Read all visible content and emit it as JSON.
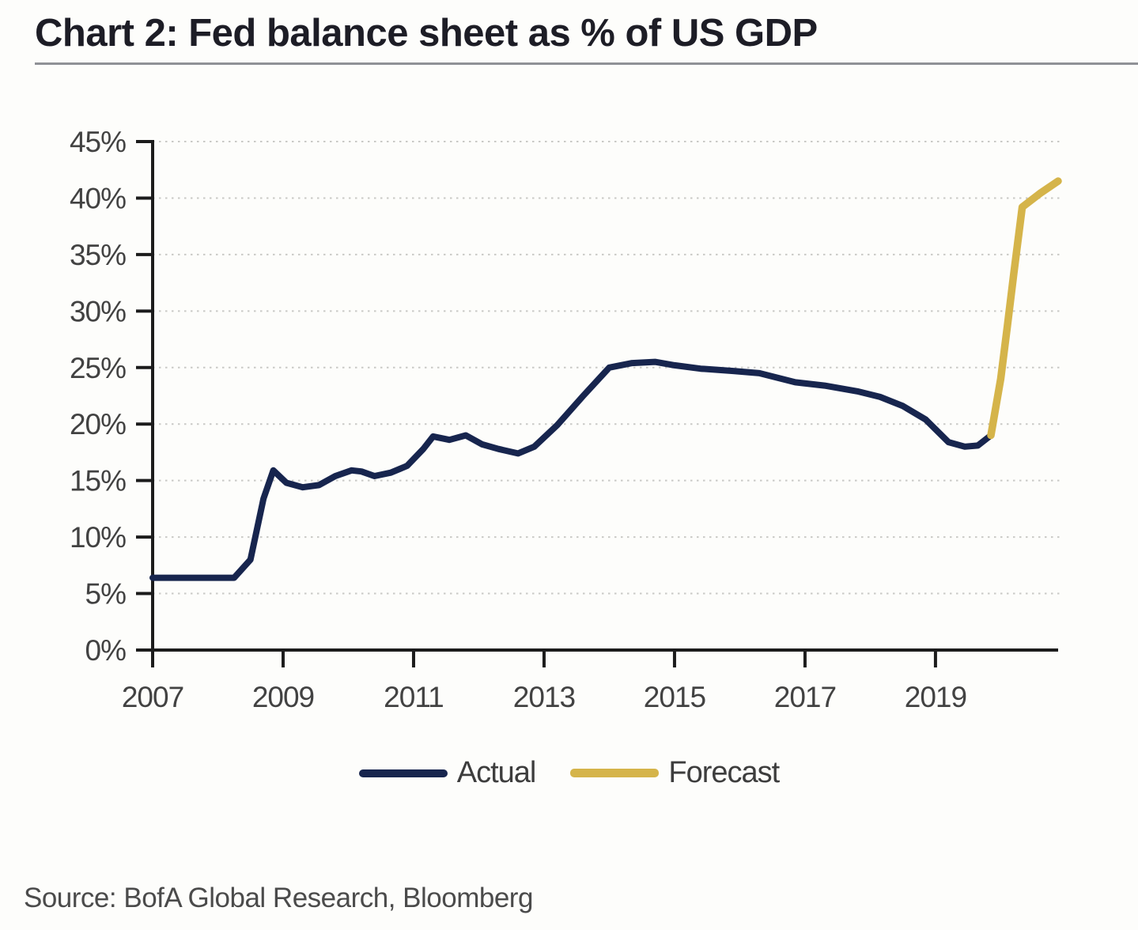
{
  "header": {
    "title": "Chart 2: Fed balance sheet as % of US GDP"
  },
  "footer": {
    "source": "Source: BofA Global Research, Bloomberg"
  },
  "chart_data": {
    "type": "line",
    "title": "Chart 2: Fed balance sheet as % of US GDP",
    "xlabel": "",
    "ylabel": "",
    "grid": true,
    "legend_position": "bottom-center",
    "xlim": [
      2007,
      2020.88
    ],
    "ylim": [
      0,
      45
    ],
    "x_ticks": [
      {
        "value": 2007,
        "label": "2007"
      },
      {
        "value": 2009,
        "label": "2009"
      },
      {
        "value": 2011,
        "label": "2011"
      },
      {
        "value": 2013,
        "label": "2013"
      },
      {
        "value": 2015,
        "label": "2015"
      },
      {
        "value": 2017,
        "label": "2017"
      },
      {
        "value": 2019,
        "label": "2019"
      }
    ],
    "y_ticks": [
      {
        "value": 0,
        "label": "0%"
      },
      {
        "value": 5,
        "label": "5%"
      },
      {
        "value": 10,
        "label": "10%"
      },
      {
        "value": 15,
        "label": "15%"
      },
      {
        "value": 20,
        "label": "20%"
      },
      {
        "value": 25,
        "label": "25%"
      },
      {
        "value": 30,
        "label": "30%"
      },
      {
        "value": 35,
        "label": "35%"
      },
      {
        "value": 40,
        "label": "40%"
      },
      {
        "value": 45,
        "label": "45%"
      }
    ],
    "series": [
      {
        "name": "Actual",
        "color": "#17254e",
        "width": 8,
        "points": [
          [
            2007.0,
            6.4
          ],
          [
            2007.5,
            6.4
          ],
          [
            2008.0,
            6.4
          ],
          [
            2008.25,
            6.4
          ],
          [
            2008.5,
            8.0
          ],
          [
            2008.7,
            13.4
          ],
          [
            2008.85,
            15.9
          ],
          [
            2009.05,
            14.8
          ],
          [
            2009.3,
            14.4
          ],
          [
            2009.55,
            14.6
          ],
          [
            2009.8,
            15.4
          ],
          [
            2010.05,
            15.9
          ],
          [
            2010.2,
            15.8
          ],
          [
            2010.4,
            15.4
          ],
          [
            2010.65,
            15.7
          ],
          [
            2010.9,
            16.3
          ],
          [
            2011.15,
            17.8
          ],
          [
            2011.3,
            18.9
          ],
          [
            2011.55,
            18.6
          ],
          [
            2011.8,
            19.0
          ],
          [
            2012.05,
            18.2
          ],
          [
            2012.3,
            17.8
          ],
          [
            2012.6,
            17.4
          ],
          [
            2012.85,
            18.0
          ],
          [
            2013.2,
            19.9
          ],
          [
            2013.6,
            22.5
          ],
          [
            2014.0,
            25.0
          ],
          [
            2014.35,
            25.4
          ],
          [
            2014.7,
            25.5
          ],
          [
            2015.0,
            25.2
          ],
          [
            2015.4,
            24.9
          ],
          [
            2015.9,
            24.7
          ],
          [
            2016.3,
            24.5
          ],
          [
            2016.85,
            23.7
          ],
          [
            2017.3,
            23.4
          ],
          [
            2017.8,
            22.9
          ],
          [
            2018.15,
            22.4
          ],
          [
            2018.5,
            21.6
          ],
          [
            2018.85,
            20.4
          ],
          [
            2019.2,
            18.4
          ],
          [
            2019.45,
            18.0
          ],
          [
            2019.65,
            18.1
          ],
          [
            2019.85,
            19.0
          ]
        ]
      },
      {
        "name": "Forecast",
        "color": "#d5b44a",
        "width": 9.5,
        "points": [
          [
            2019.85,
            19.0
          ],
          [
            2020.0,
            24.0
          ],
          [
            2020.1,
            28.6
          ],
          [
            2020.2,
            33.3
          ],
          [
            2020.33,
            39.2
          ],
          [
            2020.6,
            40.4
          ],
          [
            2020.88,
            41.5
          ]
        ]
      }
    ]
  }
}
